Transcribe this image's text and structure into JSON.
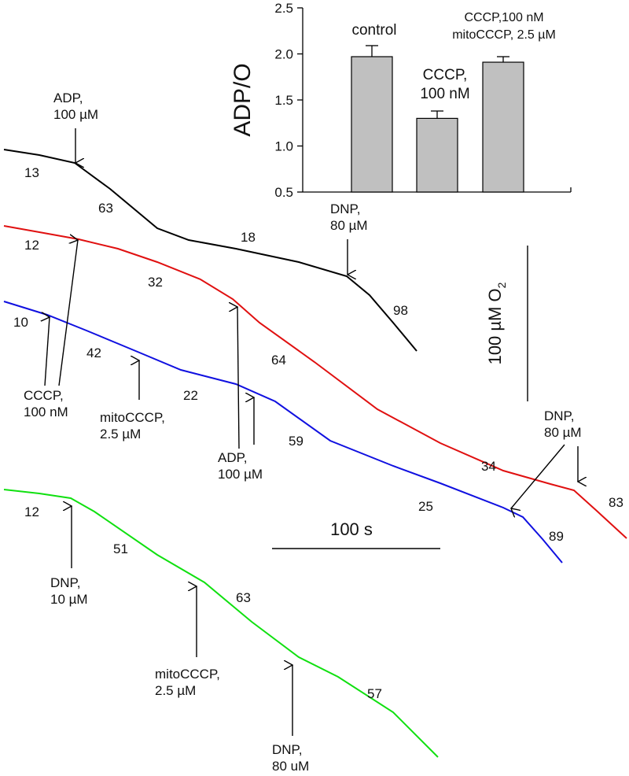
{
  "chart_data": [
    {
      "type": "bar",
      "ylabel": "ADP/O",
      "ylim": [
        0.5,
        2.5
      ],
      "yticks": [
        "0.5",
        "1.0",
        "1.5",
        "2.0",
        "2.5"
      ],
      "categories": [
        "control",
        "CCCP, 100 nM",
        "CCCP,100 nM mitoCCCP, 2.5 µM"
      ],
      "category_labels": [
        [
          "control"
        ],
        [
          "CCCP,",
          "100 nM"
        ],
        [
          "CCCP,100 nM",
          "mitoCCCP, 2.5 µM"
        ]
      ],
      "values": [
        1.97,
        1.3,
        1.91
      ],
      "errors": [
        0.12,
        0.08,
        0.06
      ],
      "bar_color": "#c0c0c0"
    },
    {
      "type": "line",
      "series": [
        {
          "color": "#000000",
          "rate_labels": [
            "13",
            "63",
            "18",
            "98"
          ],
          "additions": [
            {
              "label": [
                "ADP,",
                "100 µM"
              ]
            },
            {
              "label": [
                "DNP,",
                "80 µM"
              ]
            }
          ]
        },
        {
          "color": "#e01010",
          "rate_labels": [
            "12",
            "32",
            "64",
            "34",
            "83"
          ],
          "additions": [
            {
              "label": [
                "CCCP,",
                "100 nM"
              ]
            },
            {
              "label": [
                "ADP,",
                "100 µM"
              ]
            },
            {
              "label": [
                "DNP,",
                "80 µM"
              ]
            }
          ]
        },
        {
          "color": "#1010e0",
          "rate_labels": [
            "10",
            "42",
            "22",
            "59",
            "25",
            "89"
          ],
          "additions": [
            {
              "label": [
                "CCCP,",
                "100 nM"
              ]
            },
            {
              "label": [
                "mitoCCCP,",
                "2.5 µM"
              ]
            },
            {
              "label": [
                "ADP,",
                "100 µM"
              ]
            },
            {
              "label": [
                "DNP,",
                "80 µM"
              ]
            }
          ]
        },
        {
          "color": "#10e010",
          "rate_labels": [
            "12",
            "51",
            "63",
            "57"
          ],
          "additions": [
            {
              "label": [
                "DNP,",
                "10 µM"
              ]
            },
            {
              "label": [
                "mitoCCCP,",
                "2.5 µM"
              ]
            },
            {
              "label": [
                "DNP,",
                "80 uM"
              ]
            }
          ]
        }
      ],
      "scale_bars": {
        "vertical_label": "100 µM O",
        "vertical_label_subscript": "2",
        "horizontal_label": "100 s"
      }
    }
  ]
}
